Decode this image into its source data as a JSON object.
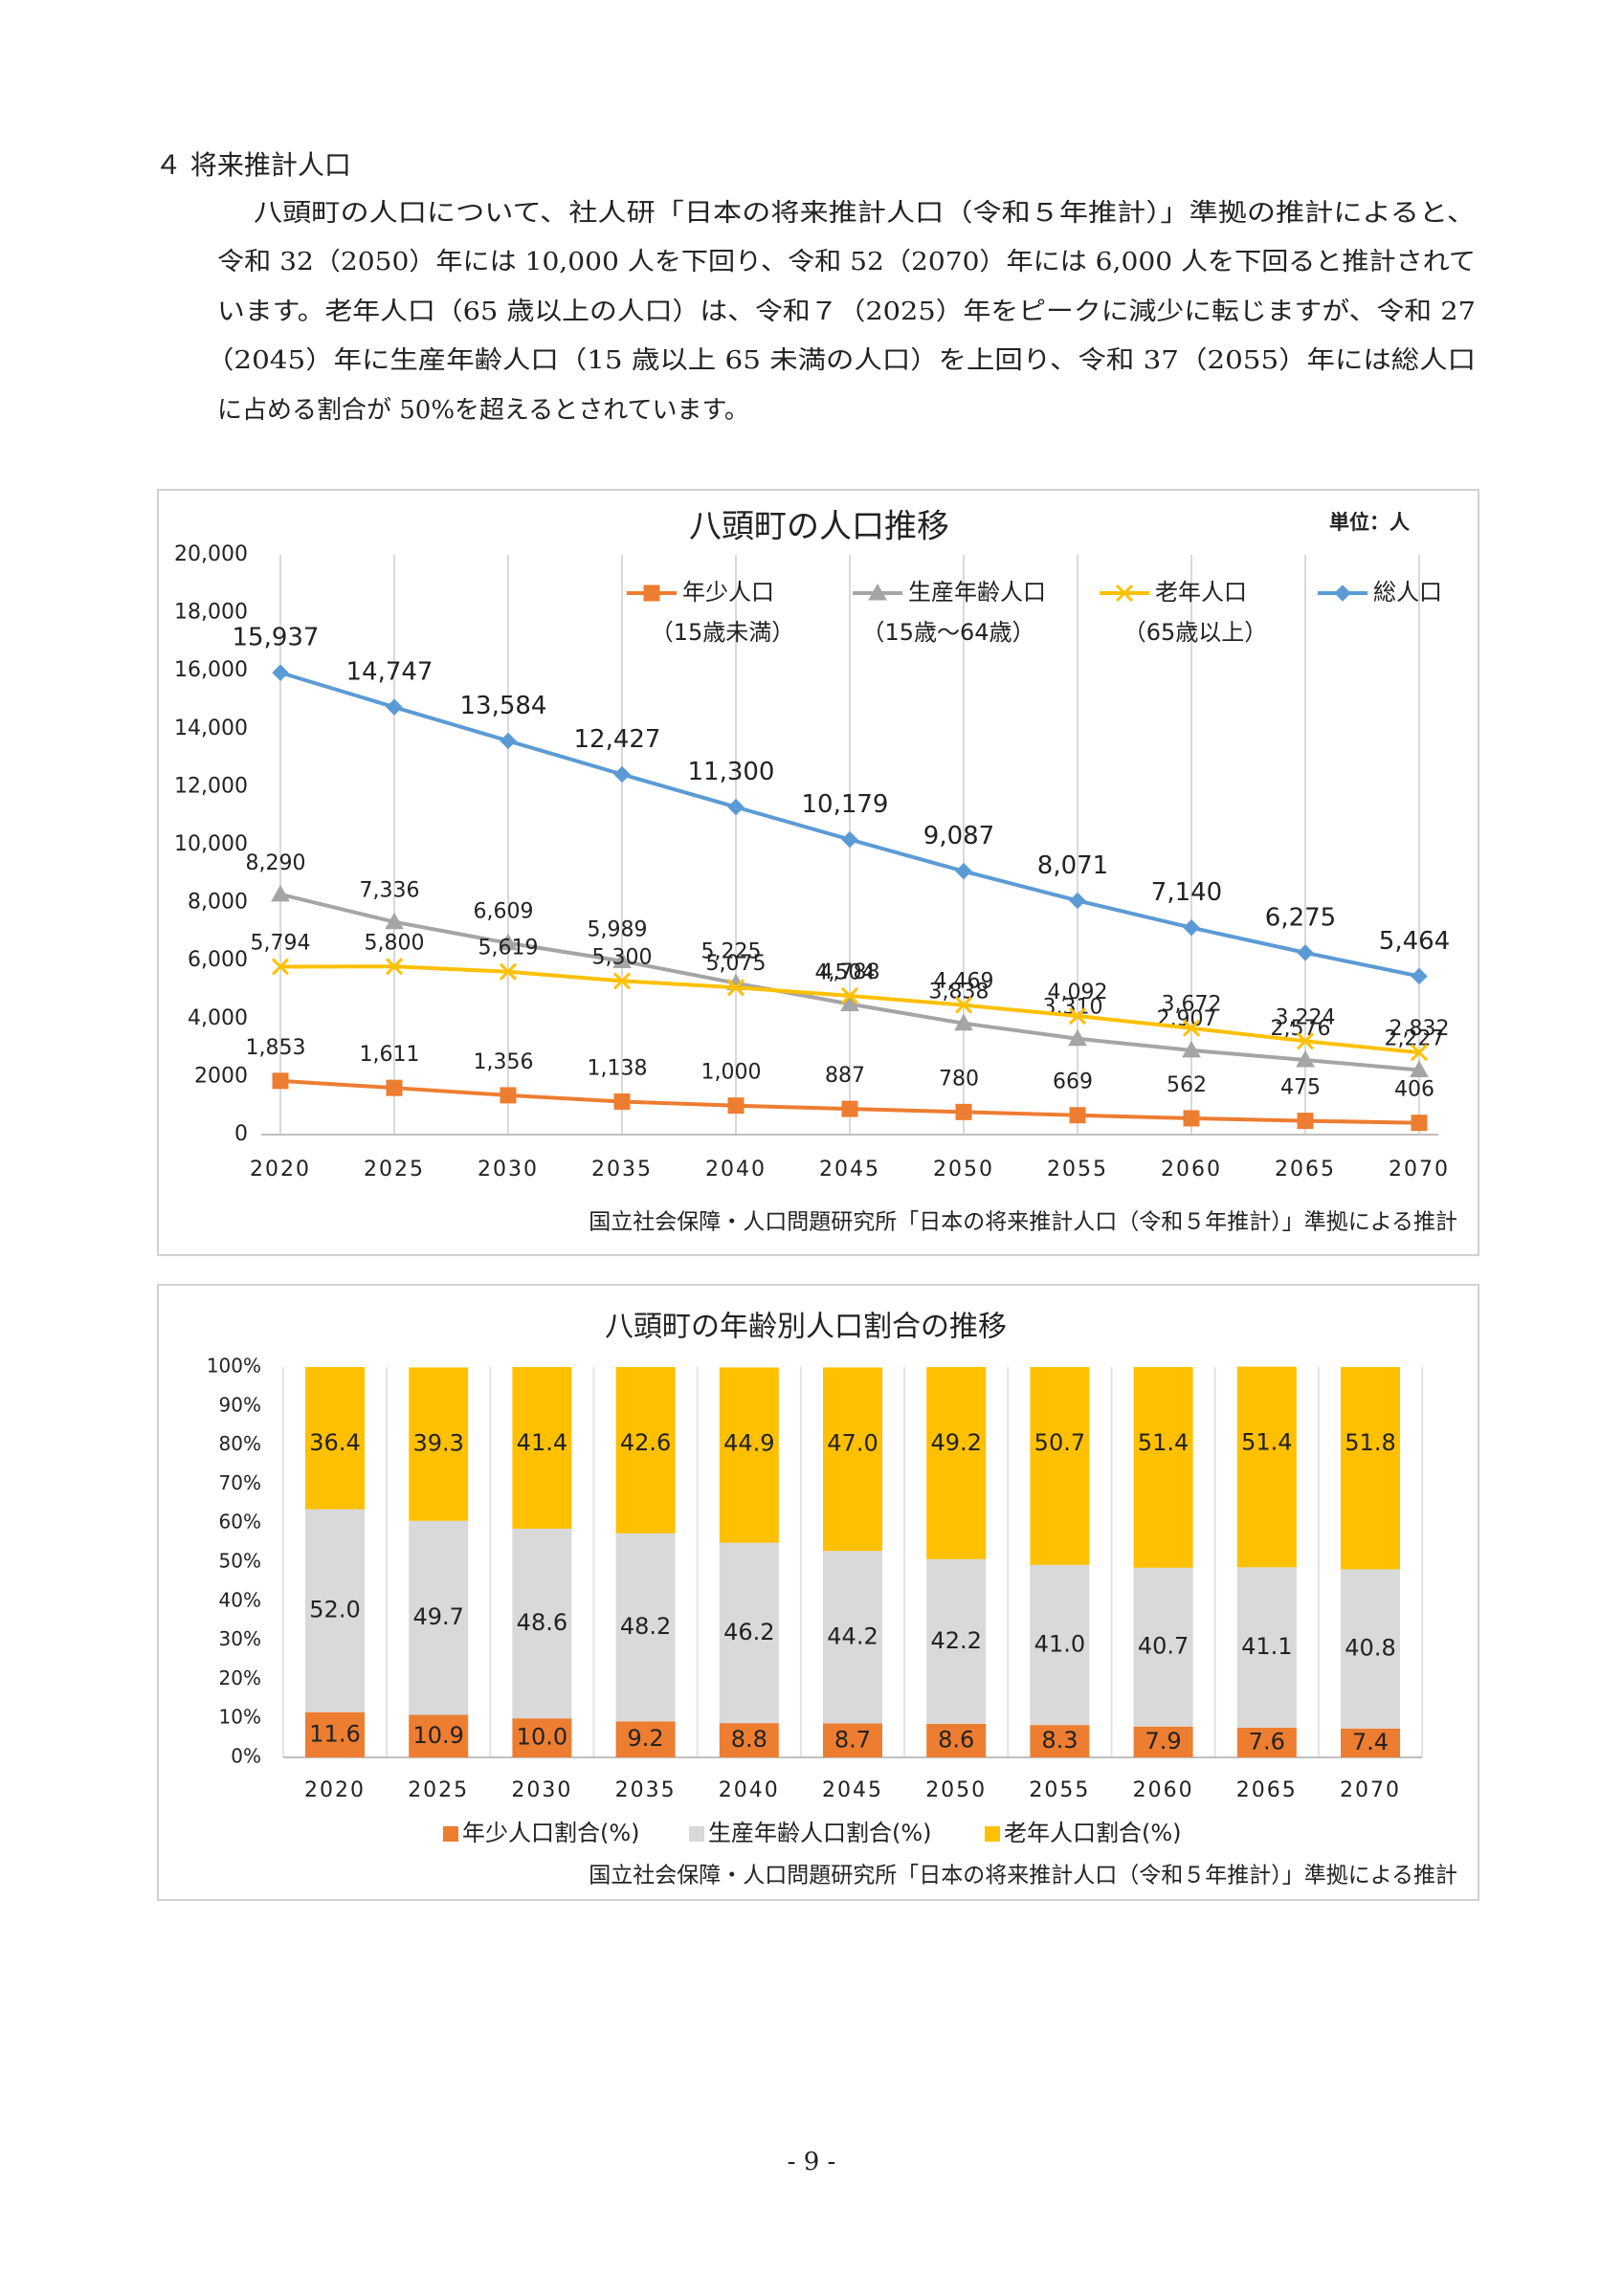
{
  "heading": "４ 将来推計人口",
  "paragraph": [
    "八頭町の人口について、社人研「日本の将来推計人口（令和５年推計）」準拠の推計によると、",
    "令和 32（2050）年には 10,000 人を下回り、令和 52（2070）年には 6,000 人を下回ると推計されて",
    "います。老年人口（65 歳以上の人口）は、令和７（2025）年をピークに減少に転じますが、令和 27",
    "（2045）年に生産年齢人口（15 歳以上 65 未満の人口）を上回り、令和 37（2055）年には総人口",
    "に占める割合が 50%を超えるとされています。"
  ],
  "page_number": "- 9 -",
  "chart_data": [
    {
      "type": "line",
      "title": "八頭町の人口推移",
      "unit_label": "単位：人",
      "source": "国立社会保障・人口問題研究所「日本の将来推計人口（令和５年推計）」準拠による推計",
      "categories": [
        "2020",
        "2025",
        "2030",
        "2035",
        "2040",
        "2045",
        "2050",
        "2055",
        "2060",
        "2065",
        "2070"
      ],
      "series": [
        {
          "name": "年少人口",
          "sublabel": "（15歳未満）",
          "color": "#ed7d31",
          "marker": "square",
          "values": [
            1853,
            1611,
            1356,
            1138,
            1000,
            887,
            780,
            669,
            562,
            475,
            406
          ],
          "value_labels": [
            "1,853",
            "1,611",
            "1,356",
            "1,138",
            "1,000",
            "887",
            "780",
            "669",
            "562",
            "475",
            "406"
          ]
        },
        {
          "name": "生産年齢人口",
          "sublabel": "（15歳～64歳）",
          "color": "#a5a5a5",
          "marker": "triangle",
          "values": [
            8290,
            7336,
            6609,
            5989,
            5225,
            4504,
            3838,
            3310,
            2907,
            2576,
            2227
          ],
          "value_labels": [
            "8,290",
            "7,336",
            "6,609",
            "5,989",
            "5,225",
            "4,504",
            "3,838",
            "3,310",
            "2,907",
            "2,576",
            "2,227"
          ]
        },
        {
          "name": "老年人口",
          "sublabel": "（65歳以上）",
          "color": "#ffc000",
          "marker": "x",
          "values": [
            5794,
            5800,
            5619,
            5300,
            5075,
            4788,
            4469,
            4092,
            3672,
            3224,
            2832
          ],
          "value_labels": [
            "5,794",
            "5,800",
            "5,619",
            "5,300",
            "5,075",
            "4,788",
            "4,469",
            "4,092",
            "3,672",
            "3,224",
            "2,832"
          ]
        },
        {
          "name": "総人口",
          "color": "#5b9bd5",
          "marker": "diamond",
          "values": [
            15937,
            14747,
            13584,
            12427,
            11300,
            10179,
            9087,
            8071,
            7140,
            6275,
            5464
          ],
          "value_labels": [
            "15,937",
            "14,747",
            "13,584",
            "12,427",
            "11,300",
            "10,179",
            "9,087",
            "8,071",
            "7,140",
            "6,275",
            "5,464"
          ]
        }
      ],
      "ylim": [
        0,
        20000
      ],
      "yticks": [
        0,
        2000,
        {
          "value": 4000,
          "label": "4,000"
        },
        {
          "value": 6000,
          "label": "6,000"
        },
        {
          "value": 8000,
          "label": "8,000"
        },
        {
          "value": 10000,
          "label": "10,000"
        },
        {
          "value": 12000,
          "label": "12,000"
        },
        {
          "value": 14000,
          "label": "14,000"
        },
        {
          "value": 16000,
          "label": "16,000"
        },
        {
          "value": 18000,
          "label": "18,000"
        },
        {
          "value": 20000,
          "label": "20,000"
        }
      ],
      "grid": "x",
      "legend": "top"
    },
    {
      "type": "stacked_bar",
      "title": "八頭町の年齢別人口割合の推移",
      "source": "国立社会保障・人口問題研究所「日本の将来推計人口（令和５年推計）」準拠による推計",
      "categories": [
        "2020",
        "2025",
        "2030",
        "2035",
        "2040",
        "2045",
        "2050",
        "2055",
        "2060",
        "2065",
        "2070"
      ],
      "series": [
        {
          "name": "年少人口割合(%)",
          "color": "#ed7d31",
          "label_color": "#ffffff",
          "values": [
            11.6,
            10.9,
            10.0,
            9.2,
            8.8,
            8.7,
            8.6,
            8.3,
            7.9,
            7.6,
            7.4
          ],
          "value_labels": [
            "11.6",
            "10.9",
            "10.0",
            "9.2",
            "8.8",
            "8.7",
            "8.6",
            "8.3",
            "7.9",
            "7.6",
            "7.4"
          ]
        },
        {
          "name": "生産年齢人口割合(%)",
          "color": "#d9d9d9",
          "label_color": "#222222",
          "values": [
            52.0,
            49.7,
            48.6,
            48.2,
            46.2,
            44.2,
            42.2,
            41.0,
            40.7,
            41.1,
            40.8
          ],
          "value_labels": [
            "52.0",
            "49.7",
            "48.6",
            "48.2",
            "46.2",
            "44.2",
            "42.2",
            "41.0",
            "40.7",
            "41.1",
            "40.8"
          ]
        },
        {
          "name": "老年人口割合(%)",
          "color": "#ffc000",
          "label_color": "#222222",
          "values": [
            36.4,
            39.3,
            41.4,
            42.6,
            44.9,
            47.0,
            49.2,
            50.7,
            51.4,
            51.4,
            51.8
          ],
          "value_labels": [
            "36.4",
            "39.3",
            "41.4",
            "42.6",
            "44.9",
            "47.0",
            "49.2",
            "50.7",
            "51.4",
            "51.4",
            "51.8"
          ]
        }
      ],
      "ylim": [
        0,
        100
      ],
      "yticks": [
        {
          "value": 0,
          "label": "0%"
        },
        {
          "value": 10,
          "label": "10%"
        },
        {
          "value": 20,
          "label": "20%"
        },
        {
          "value": 30,
          "label": "30%"
        },
        {
          "value": 40,
          "label": "40%"
        },
        {
          "value": 50,
          "label": "50%"
        },
        {
          "value": 60,
          "label": "60%"
        },
        {
          "value": 70,
          "label": "70%"
        },
        {
          "value": 80,
          "label": "80%"
        },
        {
          "value": 90,
          "label": "90%"
        },
        {
          "value": 100,
          "label": "100%"
        }
      ],
      "grid": "x",
      "legend": "bottom"
    }
  ]
}
